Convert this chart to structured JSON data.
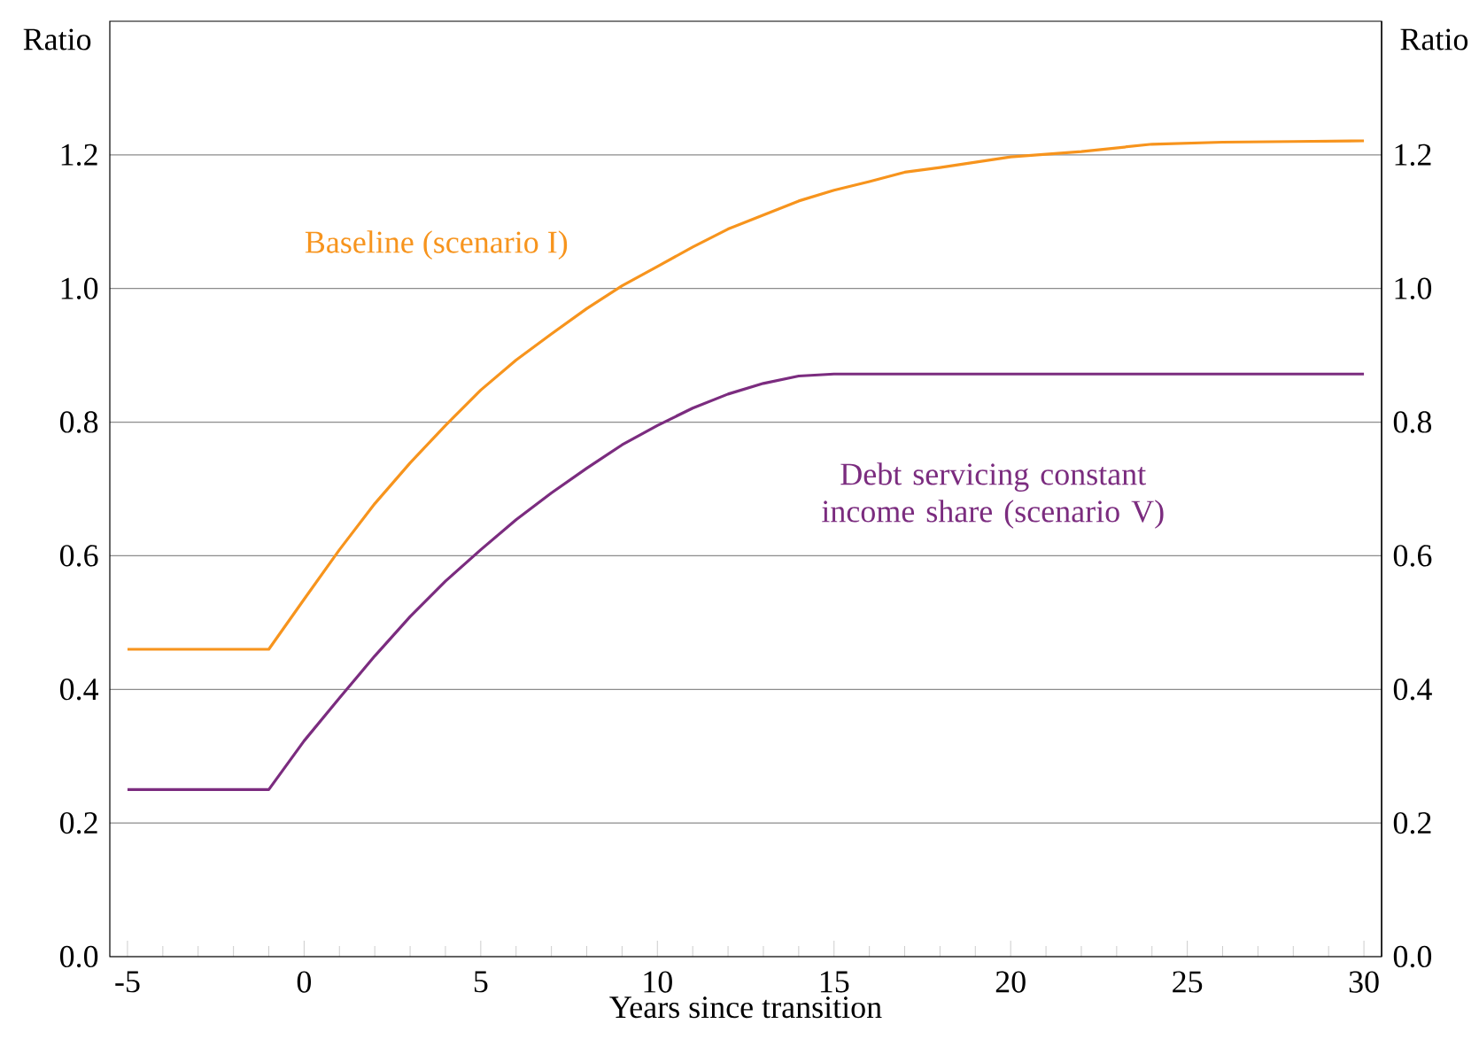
{
  "chart_data": {
    "type": "line",
    "xlabel": "Years since transition",
    "ylabel": "Ratio",
    "y2label": "Ratio",
    "x": [
      -5,
      -1,
      0,
      1,
      2,
      3,
      4,
      5,
      6,
      7,
      8,
      9,
      10,
      11,
      12,
      13,
      14,
      15,
      16,
      17,
      18,
      19,
      20,
      22,
      24,
      26,
      28,
      30
    ],
    "series": [
      {
        "name": "Baseline (scenario I)",
        "color": "#f7941d",
        "values": [
          0.46,
          0.46,
          0.535,
          0.609,
          0.678,
          0.739,
          0.795,
          0.848,
          0.893,
          0.932,
          0.97,
          1.004,
          1.033,
          1.062,
          1.089,
          1.11,
          1.131,
          1.147,
          1.16,
          1.174,
          1.181,
          1.189,
          1.197,
          1.205,
          1.216,
          1.219,
          1.22,
          1.221
        ]
      },
      {
        "name": "Debt servicing constant income share (scenario V)",
        "color": "#7b2c7f",
        "values": [
          0.25,
          0.25,
          0.323,
          0.387,
          0.45,
          0.509,
          0.562,
          0.609,
          0.654,
          0.694,
          0.731,
          0.766,
          0.795,
          0.821,
          0.842,
          0.858,
          0.869,
          0.872,
          0.872,
          0.872,
          0.872,
          0.872,
          0.872,
          0.872,
          0.872,
          0.872,
          0.872,
          0.872
        ]
      }
    ],
    "xlim": [
      -5.5,
      30.5
    ],
    "ylim": [
      0,
      1.4
    ],
    "y2lim": [
      0,
      1.4
    ],
    "xticks": [
      -5,
      0,
      5,
      10,
      15,
      20,
      25,
      30
    ],
    "yticks": [
      {
        "value": 0,
        "label": "0.0"
      },
      0.2,
      0.4,
      0.6,
      0.8,
      {
        "value": 1,
        "label": "1.0"
      },
      1.2
    ],
    "y2ticks": [
      {
        "value": 0,
        "label": "0.0"
      },
      0.2,
      0.4,
      0.6,
      0.8,
      {
        "value": 1,
        "label": "1.0"
      },
      1.2
    ],
    "grid": "y"
  }
}
